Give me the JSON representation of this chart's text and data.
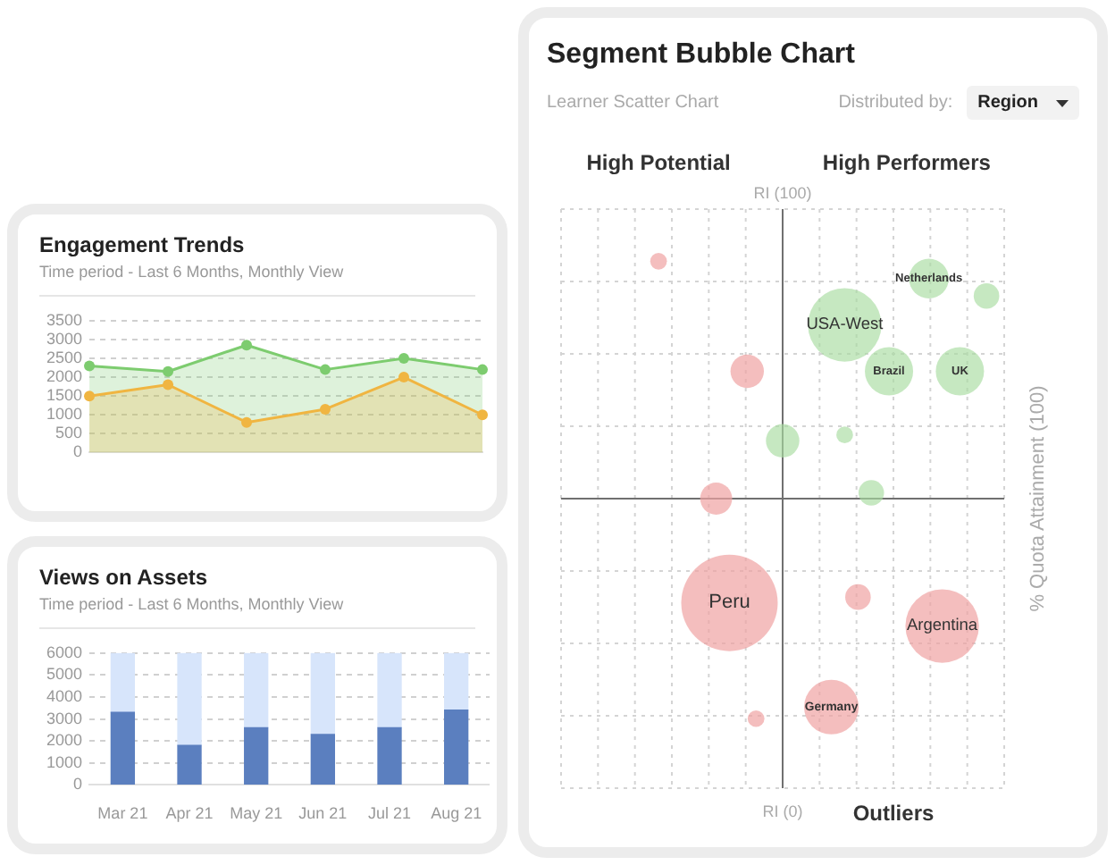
{
  "chart_data": [
    {
      "type": "other",
      "title": "Segment Bubble Chart",
      "subtitle": "Learner Scatter Chart",
      "annotations": [
        "Distributed by:",
        "Region",
        "High Potential",
        "RI (100)",
        "High Performers",
        "RI (0)",
        "Outliers",
        "% Quota Attainment (100)",
        "USA-West",
        "Brazil",
        "Netherlands",
        "UK",
        "Peru",
        "Argentina",
        "Germany"
      ]
    },
    {
      "type": "area",
      "title": "Engagement Trends",
      "subtitle": "Time period - Last 6 Months, Monthly View",
      "categories": [
        null,
        null,
        null,
        null,
        null,
        null
      ],
      "ylim": [
        0,
        3500
      ],
      "yticks": [
        0,
        500,
        1000,
        1500,
        2000,
        2500,
        3000,
        3500
      ],
      "grid": "y",
      "marker": "circle",
      "series": [
        {
          "color": "#7dcc6f",
          "values": [
            2300,
            2150,
            2850,
            2200,
            2500,
            2200
          ]
        },
        {
          "color": "#f0b541",
          "values": [
            1500,
            1800,
            800,
            1150,
            2000,
            1000
          ]
        }
      ]
    },
    {
      "type": "bar",
      "stacked": true,
      "title": "Views on Assets",
      "subtitle": "Time period - Last 6 Months, Monthly View",
      "categories": [
        "Mar 21",
        "Apr 21",
        "May 21",
        "Jun 21",
        "Jul 21",
        "Aug 21"
      ],
      "ylim": [
        0,
        6000
      ],
      "yticks": [
        0,
        1000,
        2000,
        3000,
        4000,
        5000,
        6000
      ],
      "grid": "y",
      "series": [
        {
          "color": "#5b7fbf",
          "values": [
            3300,
            1800,
            2600,
            2300,
            2600,
            3400
          ]
        },
        {
          "color": "#d7e5fb",
          "values": [
            2700,
            4200,
            3400,
            3700,
            3400,
            2600
          ]
        }
      ]
    }
  ]
}
